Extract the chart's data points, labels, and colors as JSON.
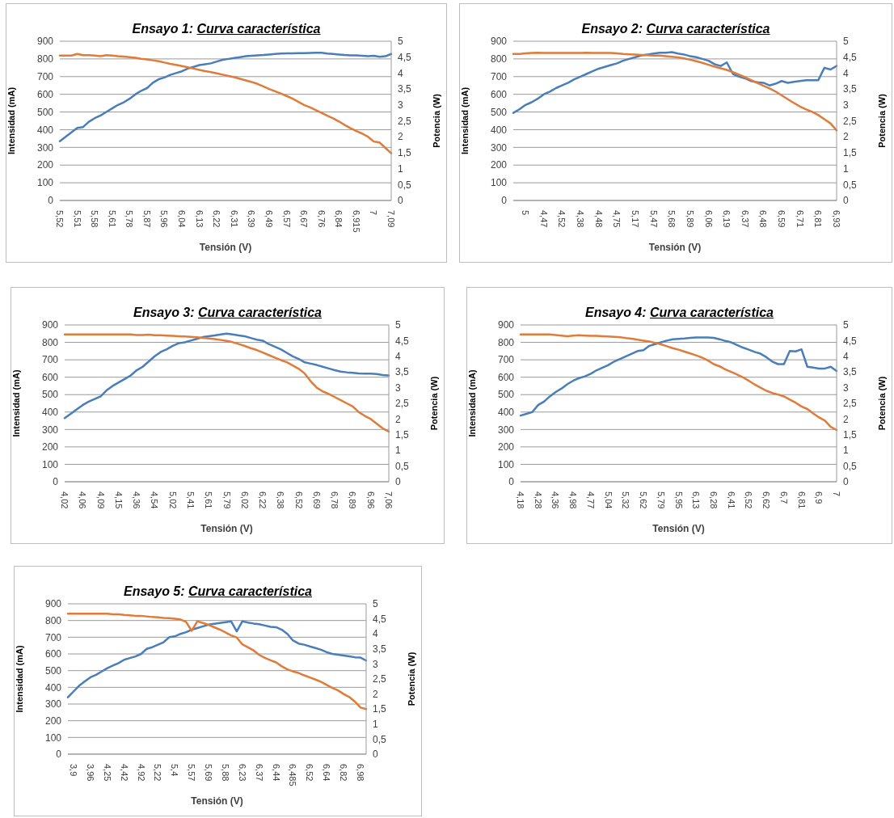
{
  "chart_data": [
    {
      "type": "line",
      "title": "Ensayo 1: Curva característica",
      "xlabel": "Tensión (V)",
      "ylabel": "Intensidad  (mA)",
      "y2label": "Potencia (W)",
      "grid": "y",
      "marker": "none",
      "categories": [
        "5,52",
        null,
        null,
        "5,51",
        null,
        null,
        "5,58",
        null,
        null,
        "5,61",
        null,
        null,
        "5,78",
        null,
        null,
        "5,87",
        null,
        null,
        "5,96",
        null,
        null,
        "6,04",
        null,
        null,
        "6,13",
        null,
        null,
        "6,22",
        null,
        null,
        "6,31",
        null,
        null,
        "6,39",
        null,
        null,
        "6,49",
        null,
        null,
        "6,57",
        null,
        null,
        "6,67",
        null,
        null,
        "6,76",
        null,
        null,
        "6,84",
        null,
        null,
        "6,915",
        null,
        null,
        "7",
        null,
        null,
        "7,09"
      ],
      "ylim": [
        0,
        900
      ],
      "yticks": [
        0,
        100,
        200,
        300,
        400,
        500,
        600,
        700,
        800,
        900
      ],
      "y2lim": [
        0,
        5
      ],
      "y2ticks": [
        0,
        {
          "value": 0.5,
          "label": "0,5"
        },
        1,
        {
          "value": 1.5,
          "label": "1,5"
        },
        2,
        {
          "value": 2.5,
          "label": "2,5"
        },
        3,
        {
          "value": 3.5,
          "label": "3,5"
        },
        4,
        {
          "value": 4.5,
          "label": "4,5"
        },
        5
      ],
      "series": [
        {
          "color": "#4a7ebb",
          "values": [
            335,
            360,
            385,
            410,
            415,
            445,
            465,
            480,
            500,
            520,
            540,
            555,
            575,
            600,
            620,
            635,
            665,
            685,
            695,
            710,
            720,
            730,
            745,
            755,
            765,
            770,
            775,
            785,
            795,
            800,
            805,
            810,
            815,
            818,
            820,
            822,
            825,
            828,
            830,
            832,
            832,
            833,
            833,
            834,
            835,
            835,
            830,
            828,
            825,
            822,
            820,
            820,
            818,
            815,
            818,
            812,
            815,
            828
          ]
        },
        {
          "color": "#e07b39",
          "axis": "y2",
          "values": [
            4.55,
            4.55,
            4.55,
            4.6,
            4.56,
            4.56,
            4.55,
            4.53,
            4.56,
            4.55,
            4.53,
            4.52,
            4.5,
            4.48,
            4.45,
            4.43,
            4.4,
            4.37,
            4.33,
            4.29,
            4.26,
            4.22,
            4.18,
            4.14,
            4.1,
            4.06,
            4.03,
            3.99,
            3.95,
            3.91,
            3.87,
            3.82,
            3.77,
            3.72,
            3.66,
            3.58,
            3.5,
            3.43,
            3.36,
            3.28,
            3.2,
            3.1,
            3.0,
            2.93,
            2.84,
            2.75,
            2.66,
            2.58,
            2.48,
            2.37,
            2.27,
            2.18,
            2.1,
            2.0,
            1.85,
            1.82,
            1.65,
            1.48
          ]
        }
      ]
    },
    {
      "type": "line",
      "title": "Ensayo 2: Curva característica",
      "xlabel": "Tensión (V)",
      "ylabel": "Intensidad  (mA)",
      "y2label": "Potencia (W)",
      "grid": "y",
      "marker": "none",
      "categories": [
        null,
        null,
        "5",
        null,
        null,
        "4,47",
        null,
        null,
        "4,52",
        null,
        null,
        "4,38",
        null,
        null,
        "4,48",
        null,
        null,
        "4,75",
        null,
        null,
        "5,17",
        null,
        null,
        "5,47",
        null,
        null,
        "5,68",
        null,
        null,
        "5,89",
        null,
        null,
        "6,06",
        null,
        null,
        "6,19",
        null,
        null,
        "6,37",
        null,
        null,
        "6,48",
        null,
        null,
        "6,59",
        null,
        null,
        "6,71",
        null,
        null,
        "6,81",
        null,
        null,
        "6,93"
      ],
      "ylim": [
        0,
        900
      ],
      "yticks": [
        0,
        100,
        200,
        300,
        400,
        500,
        600,
        700,
        800,
        900
      ],
      "y2lim": [
        0,
        5
      ],
      "y2ticks": [
        0,
        {
          "value": 0.5,
          "label": "0,5"
        },
        1,
        {
          "value": 1.5,
          "label": "1,5"
        },
        2,
        {
          "value": 2.5,
          "label": "2,5"
        },
        3,
        {
          "value": 3.5,
          "label": "3,5"
        },
        4,
        {
          "value": 4.5,
          "label": "4,5"
        },
        5
      ],
      "series": [
        {
          "color": "#4a7ebb",
          "values": [
            495,
            515,
            540,
            555,
            575,
            600,
            615,
            635,
            650,
            665,
            685,
            700,
            715,
            730,
            745,
            755,
            765,
            775,
            790,
            800,
            810,
            820,
            825,
            830,
            835,
            835,
            838,
            830,
            825,
            815,
            810,
            800,
            790,
            770,
            760,
            780,
            715,
            700,
            690,
            675,
            668,
            665,
            650,
            660,
            675,
            665,
            670,
            675,
            680,
            680,
            680,
            750,
            740,
            760
          ]
        },
        {
          "color": "#e07b39",
          "axis": "y2",
          "values": [
            4.6,
            4.6,
            4.62,
            4.63,
            4.64,
            4.63,
            4.63,
            4.63,
            4.63,
            4.63,
            4.63,
            4.63,
            4.64,
            4.63,
            4.63,
            4.63,
            4.63,
            4.62,
            4.6,
            4.59,
            4.58,
            4.57,
            4.56,
            4.55,
            4.55,
            4.53,
            4.51,
            4.49,
            4.46,
            4.42,
            4.37,
            4.32,
            4.26,
            4.2,
            4.15,
            4.1,
            4.03,
            3.95,
            3.87,
            3.78,
            3.69,
            3.6,
            3.52,
            3.42,
            3.3,
            3.18,
            3.06,
            2.95,
            2.86,
            2.78,
            2.68,
            2.55,
            2.42,
            2.2
          ]
        }
      ]
    },
    {
      "type": "line",
      "title": "Ensayo 3: Curva característica",
      "xlabel": "Tensión (V)",
      "ylabel": "Intensidad  (mA)",
      "y2label": "Potencia (W)",
      "grid": "y",
      "marker": "none",
      "categories": [
        "4,02",
        null,
        null,
        "4,06",
        null,
        null,
        "4,09",
        null,
        null,
        "4,15",
        null,
        null,
        "4,36",
        null,
        null,
        "4,54",
        null,
        null,
        "5,02",
        null,
        null,
        "5,41",
        null,
        null,
        "5,61",
        null,
        null,
        "5,79",
        null,
        null,
        "6,02",
        null,
        null,
        "6,22",
        null,
        null,
        "6,38",
        null,
        null,
        "6,52",
        null,
        null,
        "6,69",
        null,
        null,
        "6,78",
        null,
        null,
        "6,89",
        null,
        null,
        "6,96",
        null,
        null,
        "7,06"
      ],
      "ylim": [
        0,
        900
      ],
      "yticks": [
        0,
        100,
        200,
        300,
        400,
        500,
        600,
        700,
        800,
        900
      ],
      "y2lim": [
        0,
        5
      ],
      "y2ticks": [
        0,
        {
          "value": 0.5,
          "label": "0,5"
        },
        1,
        {
          "value": 1.5,
          "label": "1,5"
        },
        2,
        {
          "value": 2.5,
          "label": "2,5"
        },
        3,
        {
          "value": 3.5,
          "label": "3,5"
        },
        4,
        {
          "value": 4.5,
          "label": "4,5"
        },
        5
      ],
      "series": [
        {
          "color": "#4a7ebb",
          "values": [
            365,
            390,
            415,
            440,
            460,
            475,
            490,
            525,
            550,
            570,
            590,
            610,
            640,
            660,
            690,
            720,
            745,
            760,
            780,
            795,
            800,
            810,
            820,
            830,
            835,
            840,
            845,
            850,
            845,
            840,
            835,
            825,
            815,
            810,
            790,
            775,
            760,
            740,
            720,
            705,
            685,
            678,
            670,
            660,
            650,
            640,
            632,
            628,
            625,
            622,
            620,
            620,
            618,
            612,
            610
          ]
        },
        {
          "color": "#e07b39",
          "axis": "y2",
          "values": [
            4.7,
            4.7,
            4.7,
            4.7,
            4.7,
            4.7,
            4.7,
            4.7,
            4.7,
            4.7,
            4.7,
            4.7,
            4.68,
            4.68,
            4.69,
            4.67,
            4.67,
            4.66,
            4.65,
            4.64,
            4.63,
            4.62,
            4.61,
            4.59,
            4.57,
            4.55,
            4.52,
            4.49,
            4.45,
            4.39,
            4.33,
            4.26,
            4.2,
            4.12,
            4.04,
            3.96,
            3.88,
            3.81,
            3.71,
            3.6,
            3.45,
            3.2,
            3.0,
            2.88,
            2.8,
            2.7,
            2.6,
            2.5,
            2.4,
            2.22,
            2.1,
            2.0,
            1.85,
            1.7,
            1.6
          ]
        }
      ]
    },
    {
      "type": "line",
      "title": "Ensayo 4: Curva característica",
      "xlabel": "Tensión (V)",
      "ylabel": "Intensidad  (mA)",
      "y2label": "Potencia (W)",
      "grid": "y",
      "marker": "none",
      "categories": [
        "4,18",
        null,
        null,
        "4,28",
        null,
        null,
        "4,36",
        null,
        null,
        "4,98",
        null,
        null,
        "4,77",
        null,
        null,
        "5,04",
        null,
        null,
        "5,32",
        null,
        null,
        "5,62",
        null,
        null,
        "5,79",
        null,
        null,
        "5,95",
        null,
        null,
        "6,13",
        null,
        null,
        "6,28",
        null,
        null,
        "6,41",
        null,
        null,
        "6,52",
        null,
        null,
        "6,62",
        null,
        null,
        "6,7",
        null,
        null,
        "6,81",
        null,
        null,
        "6,9",
        null,
        null,
        "7"
      ],
      "ylim": [
        0,
        900
      ],
      "yticks": [
        0,
        100,
        200,
        300,
        400,
        500,
        600,
        700,
        800,
        900
      ],
      "y2lim": [
        0,
        5
      ],
      "y2ticks": [
        0,
        {
          "value": 0.5,
          "label": "0,5"
        },
        1,
        {
          "value": 1.5,
          "label": "1,5"
        },
        2,
        {
          "value": 2.5,
          "label": "2,5"
        },
        3,
        {
          "value": 3.5,
          "label": "3,5"
        },
        4,
        {
          "value": 4.5,
          "label": "4,5"
        },
        5
      ],
      "series": [
        {
          "color": "#4a7ebb",
          "values": [
            380,
            390,
            400,
            440,
            460,
            490,
            515,
            535,
            560,
            580,
            595,
            605,
            620,
            640,
            655,
            670,
            690,
            705,
            720,
            735,
            750,
            755,
            780,
            790,
            800,
            810,
            818,
            820,
            822,
            826,
            828,
            828,
            828,
            826,
            818,
            808,
            800,
            785,
            770,
            758,
            745,
            735,
            715,
            690,
            675,
            675,
            750,
            748,
            760,
            660,
            655,
            650,
            650,
            660,
            635
          ]
        },
        {
          "color": "#e07b39",
          "axis": "y2",
          "values": [
            4.7,
            4.7,
            4.7,
            4.7,
            4.7,
            4.7,
            4.68,
            4.66,
            4.64,
            4.66,
            4.67,
            4.66,
            4.65,
            4.65,
            4.64,
            4.63,
            4.62,
            4.61,
            4.58,
            4.56,
            4.53,
            4.5,
            4.47,
            4.43,
            4.38,
            4.32,
            4.26,
            4.21,
            4.15,
            4.09,
            4.03,
            3.96,
            3.87,
            3.75,
            3.68,
            3.58,
            3.5,
            3.42,
            3.33,
            3.22,
            3.1,
            3.0,
            2.9,
            2.83,
            2.78,
            2.72,
            2.62,
            2.52,
            2.4,
            2.32,
            2.18,
            2.05,
            1.95,
            1.75,
            1.65
          ]
        }
      ]
    },
    {
      "type": "line",
      "title": "Ensayo 5: Curva característica",
      "xlabel": "Tensión (V)",
      "ylabel": "Intensidad  (mA)",
      "y2label": "Potencia (W)",
      "grid": "y",
      "marker": "none",
      "categories": [
        null,
        "3,9",
        null,
        null,
        "3,96",
        null,
        null,
        "4,25",
        null,
        null,
        "4,42",
        null,
        null,
        "4,92",
        null,
        null,
        "5,22",
        null,
        null,
        "5,4",
        null,
        null,
        "5,57",
        null,
        null,
        "5,69",
        null,
        null,
        "5,88",
        null,
        null,
        "6,23",
        null,
        null,
        "6,37",
        null,
        null,
        "6,44",
        null,
        null,
        "6,485",
        null,
        null,
        "6,52",
        null,
        null,
        "6,64",
        null,
        null,
        "6,82",
        null,
        null,
        "6,98",
        null
      ],
      "ylim": [
        0,
        900
      ],
      "yticks": [
        0,
        100,
        200,
        300,
        400,
        500,
        600,
        700,
        800,
        900
      ],
      "y2lim": [
        0,
        5
      ],
      "y2ticks": [
        0,
        {
          "value": 0.5,
          "label": "0,5"
        },
        1,
        {
          "value": 1.5,
          "label": "1,5"
        },
        2,
        {
          "value": 2.5,
          "label": "2,5"
        },
        3,
        {
          "value": 3.5,
          "label": "3,5"
        },
        4,
        {
          "value": 4.5,
          "label": "4,5"
        },
        5
      ],
      "series": [
        {
          "color": "#4a7ebb",
          "values": [
            340,
            375,
            410,
            435,
            460,
            475,
            495,
            515,
            530,
            545,
            565,
            575,
            585,
            600,
            630,
            640,
            655,
            670,
            700,
            705,
            720,
            730,
            745,
            755,
            765,
            775,
            780,
            785,
            790,
            795,
            735,
            795,
            788,
            782,
            778,
            770,
            762,
            760,
            745,
            720,
            680,
            662,
            655,
            645,
            635,
            625,
            610,
            600,
            595,
            590,
            585,
            580,
            578,
            560
          ]
        },
        {
          "color": "#e07b39",
          "axis": "y2",
          "values": [
            4.67,
            4.67,
            4.67,
            4.67,
            4.67,
            4.67,
            4.67,
            4.67,
            4.65,
            4.65,
            4.63,
            4.62,
            4.6,
            4.6,
            4.58,
            4.56,
            4.55,
            4.53,
            4.52,
            4.5,
            4.48,
            4.4,
            4.1,
            4.42,
            4.36,
            4.3,
            4.22,
            4.14,
            4.05,
            3.95,
            3.88,
            3.65,
            3.55,
            3.45,
            3.3,
            3.2,
            3.12,
            3.05,
            2.92,
            2.82,
            2.75,
            2.7,
            2.62,
            2.55,
            2.48,
            2.4,
            2.3,
            2.2,
            2.12,
            2.0,
            1.9,
            1.75,
            1.55,
            1.5
          ]
        }
      ]
    }
  ]
}
